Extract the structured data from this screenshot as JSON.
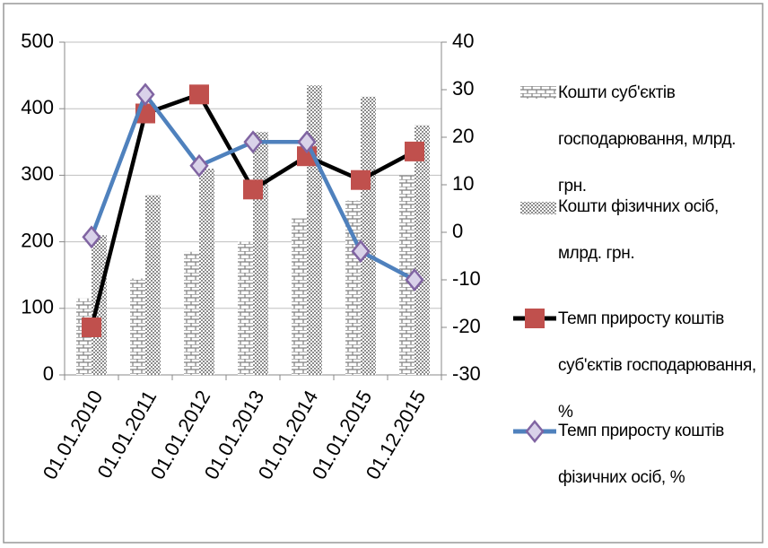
{
  "chart_data": {
    "type": "bar-line",
    "categories": [
      "01.01.2010",
      "01.01.2011",
      "01.01.2012",
      "01.01.2013",
      "01.01.2014",
      "01.01.2015",
      "01.12.2015"
    ],
    "series": [
      {
        "name": "Кошти суб'єктів господарювання, млрд. грн.",
        "kind": "bar",
        "pattern": "brick",
        "color": "#7f7f7f",
        "values": [
          115,
          145,
          185,
          200,
          235,
          262,
          300
        ]
      },
      {
        "name": "Кошти фізичних осіб, млрд. грн.",
        "kind": "bar",
        "pattern": "dots",
        "color": "#8c8c8c",
        "values": [
          210,
          270,
          310,
          365,
          435,
          418,
          375
        ]
      },
      {
        "name": "Темп приросту коштів суб'єктів господарювання, %",
        "kind": "line",
        "axis": "y2",
        "color": "#000000",
        "marker": "square",
        "marker_color": "#c0504d",
        "values": [
          -20,
          25,
          29,
          9,
          16,
          11,
          17
        ]
      },
      {
        "name": "Темп приросту коштів фізичних осіб, %",
        "kind": "line",
        "axis": "y2",
        "color": "#4f81bd",
        "marker": "diamond",
        "marker_color": "#8064a2",
        "values": [
          -1,
          29,
          14,
          19,
          19,
          -4,
          -10
        ]
      }
    ],
    "ylim": [
      0,
      500
    ],
    "yticks": [
      0,
      100,
      200,
      300,
      400,
      500
    ],
    "y2lim": [
      -30,
      40
    ],
    "y2ticks": [
      -30,
      -20,
      -10,
      0,
      10,
      20,
      30,
      40
    ],
    "grid": true,
    "legend": "right"
  }
}
